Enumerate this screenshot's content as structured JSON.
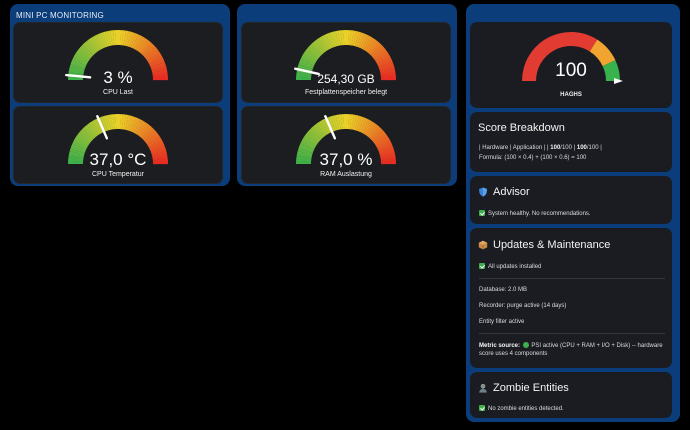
{
  "panels": {
    "left_title": "MINI PC MONITORING"
  },
  "gauges": [
    {
      "id": "cpu-load",
      "value_text": "3 %",
      "label": "CPU Last",
      "fraction": 0.03
    },
    {
      "id": "cpu-temp",
      "value_text": "37,0 °C",
      "label": "CPU Temperatur",
      "fraction": 0.37
    },
    {
      "id": "disk",
      "value_text": "254,30 GB",
      "label": "Festplattenspeicher belegt",
      "fraction": 0.07
    },
    {
      "id": "ram",
      "value_text": "37,0 %",
      "label": "RAM Auslastung",
      "fraction": 0.37
    }
  ],
  "haghs": {
    "value_text": "100",
    "label": "HAGHS",
    "fraction": 1.0,
    "colors": {
      "red": "#e23b32",
      "orange": "#f1a530",
      "green": "#37b24d"
    }
  },
  "score": {
    "title": "Score Breakdown",
    "line1_pre": "| Hardware | Application | | ",
    "line1_b1": "100",
    "line1_mid1": "/100 | ",
    "line1_b2": "100",
    "line1_mid2": "/100 |",
    "line2": "Formula: (100 × 0.4) + (100 × 0.6) = 100"
  },
  "advisor": {
    "title": "Advisor",
    "icon": "shield-icon",
    "status": "System healthy. No recommendations."
  },
  "updates": {
    "title": "Updates & Maintenance",
    "icon": "package-icon",
    "all_installed": "All updates installed",
    "database": "Database: 2.0 MB",
    "recorder": "Recorder: purge active (14 days)",
    "entity_filter": "Entity filter active",
    "metric_label": "Metric source:",
    "metric_line1": "PSI active (CPU + RAM + I/O + Disk) -- hardware",
    "metric_line2": "score uses 4 components"
  },
  "zombie": {
    "title": "Zombie Entities",
    "icon": "zombie-icon",
    "status": "No zombie entities detected."
  }
}
